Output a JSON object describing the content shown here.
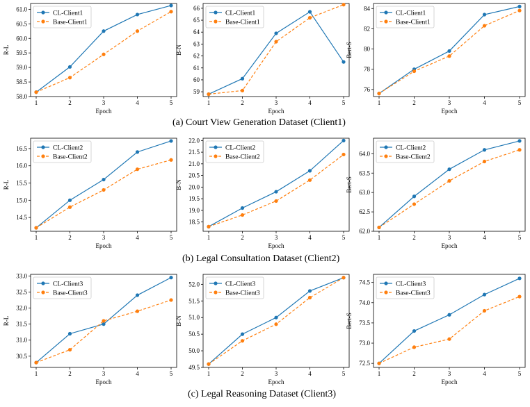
{
  "colors": {
    "cl": "#1f77b4",
    "base": "#ff7f0e"
  },
  "captions": [
    "(a)  Court View Generation Dataset (Client1)",
    "(b)  Legal Consultation Dataset (Client2)",
    "(c)  Legal Reasoning Dataset (Client3)"
  ],
  "chart_data": [
    {
      "type": "line",
      "row": 0,
      "col": 0,
      "xlabel": "Epoch",
      "ylabel": "R-L",
      "x": [
        1,
        2,
        3,
        4,
        5
      ],
      "ylim": [
        58.0,
        61.2
      ],
      "yticks": [
        "58.0",
        "58.5",
        "59.0",
        "59.5",
        "60.0",
        "60.5",
        "61.0"
      ],
      "legend": "upper-left",
      "series": [
        {
          "name": "CL-Client1",
          "values": [
            58.15,
            59.02,
            60.25,
            60.82,
            61.13
          ]
        },
        {
          "name": "Base-Client1",
          "values": [
            58.15,
            58.65,
            59.45,
            60.25,
            60.92
          ]
        }
      ]
    },
    {
      "type": "line",
      "row": 0,
      "col": 1,
      "xlabel": "Epoch",
      "ylabel": "B-N",
      "x": [
        1,
        2,
        3,
        4,
        5
      ],
      "ylim": [
        58.6,
        66.4
      ],
      "yticks": [
        "59",
        "60",
        "61",
        "62",
        "63",
        "64",
        "65",
        "66"
      ],
      "legend": "upper-left",
      "series": [
        {
          "name": "CL-Client1",
          "values": [
            58.8,
            60.1,
            63.9,
            65.7,
            61.5
          ]
        },
        {
          "name": "Base-Client1",
          "values": [
            58.8,
            59.1,
            63.2,
            65.2,
            66.3
          ]
        }
      ]
    },
    {
      "type": "line",
      "row": 0,
      "col": 2,
      "xlabel": "Epoch",
      "ylabel": "Bert-S",
      "x": [
        1,
        2,
        3,
        4,
        5
      ],
      "ylim": [
        75.3,
        84.5
      ],
      "yticks": [
        "76",
        "78",
        "80",
        "82",
        "84"
      ],
      "legend": "upper-left",
      "series": [
        {
          "name": "CL-Client1",
          "values": [
            75.6,
            78.0,
            79.8,
            83.4,
            84.2
          ]
        },
        {
          "name": "Base-Client1",
          "values": [
            75.6,
            77.8,
            79.3,
            82.3,
            83.8
          ]
        }
      ]
    },
    {
      "type": "line",
      "row": 1,
      "col": 0,
      "xlabel": "Epoch",
      "ylabel": "R-L",
      "x": [
        1,
        2,
        3,
        4,
        5
      ],
      "ylim": [
        14.1,
        16.8
      ],
      "yticks": [
        "14.5",
        "15.0",
        "15.5",
        "16.0",
        "16.5"
      ],
      "legend": "upper-left",
      "series": [
        {
          "name": "CL-Client2",
          "values": [
            14.2,
            15.0,
            15.6,
            16.4,
            16.72
          ]
        },
        {
          "name": "Base-Client2",
          "values": [
            14.2,
            14.8,
            15.3,
            15.9,
            16.17
          ]
        }
      ]
    },
    {
      "type": "line",
      "row": 1,
      "col": 1,
      "xlabel": "Epoch",
      "ylabel": "B-N",
      "x": [
        1,
        2,
        3,
        4,
        5
      ],
      "ylim": [
        18.1,
        22.1
      ],
      "yticks": [
        "18.5",
        "19.0",
        "19.5",
        "20.0",
        "20.5",
        "21.0",
        "21.5",
        "22.0"
      ],
      "legend": "upper-left",
      "series": [
        {
          "name": "CL-Client2",
          "values": [
            18.3,
            19.1,
            19.8,
            20.7,
            22.0
          ]
        },
        {
          "name": "Base-Client2",
          "values": [
            18.3,
            18.8,
            19.4,
            20.3,
            21.4
          ]
        }
      ]
    },
    {
      "type": "line",
      "row": 1,
      "col": 2,
      "xlabel": "Epoch",
      "ylabel": "Bert-S",
      "x": [
        1,
        2,
        3,
        4,
        5
      ],
      "ylim": [
        62.0,
        64.4
      ],
      "yticks": [
        "62.0",
        "62.5",
        "63.0",
        "63.5",
        "64.0"
      ],
      "legend": "upper-left",
      "series": [
        {
          "name": "CL-Client2",
          "values": [
            62.1,
            62.9,
            63.6,
            64.1,
            64.33
          ]
        },
        {
          "name": "Base-Client2",
          "values": [
            62.1,
            62.7,
            63.3,
            63.8,
            64.1
          ]
        }
      ]
    },
    {
      "type": "line",
      "row": 2,
      "col": 0,
      "xlabel": "Epoch",
      "ylabel": "R-L",
      "x": [
        1,
        2,
        3,
        4,
        5
      ],
      "ylim": [
        30.15,
        33.05
      ],
      "yticks": [
        "30.5",
        "31.0",
        "31.5",
        "32.0",
        "32.5",
        "33.0"
      ],
      "legend": "upper-left",
      "series": [
        {
          "name": "CL-Client3",
          "values": [
            30.3,
            31.2,
            31.5,
            32.4,
            32.95
          ]
        },
        {
          "name": "Base-Client3",
          "values": [
            30.3,
            30.7,
            31.6,
            31.9,
            32.25
          ]
        }
      ]
    },
    {
      "type": "line",
      "row": 2,
      "col": 1,
      "xlabel": "Epoch",
      "ylabel": "B-N",
      "x": [
        1,
        2,
        3,
        4,
        5
      ],
      "ylim": [
        49.5,
        52.3
      ],
      "yticks": [
        "49.5",
        "50.0",
        "50.5",
        "51.0",
        "51.5",
        "52.0"
      ],
      "legend": "upper-left",
      "series": [
        {
          "name": "CL-Client3",
          "values": [
            49.6,
            50.5,
            51.0,
            51.8,
            52.2
          ]
        },
        {
          "name": "Base-Client3",
          "values": [
            49.6,
            50.3,
            50.8,
            51.6,
            52.2
          ]
        }
      ]
    },
    {
      "type": "line",
      "row": 2,
      "col": 2,
      "xlabel": "Epoch",
      "ylabel": "Bert-S",
      "x": [
        1,
        2,
        3,
        4,
        5
      ],
      "ylim": [
        72.4,
        74.7
      ],
      "yticks": [
        "72.5",
        "73.0",
        "73.5",
        "74.0",
        "74.5"
      ],
      "legend": "upper-left",
      "series": [
        {
          "name": "CL-Client3",
          "values": [
            72.5,
            73.3,
            73.7,
            74.2,
            74.6
          ]
        },
        {
          "name": "Base-Client3",
          "values": [
            72.5,
            72.9,
            73.1,
            73.8,
            74.15
          ]
        }
      ]
    }
  ]
}
